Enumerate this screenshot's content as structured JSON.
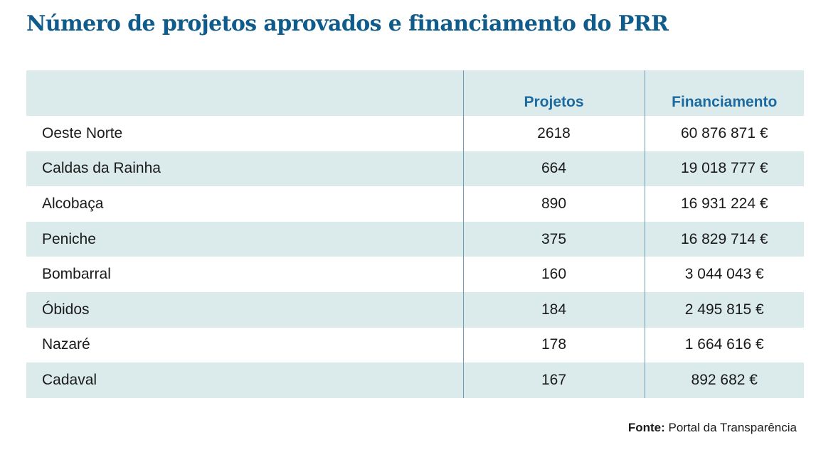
{
  "title": "Número de projetos aprovados e financiamento do PRR",
  "source": {
    "label": "Fonte:",
    "text": "Portal da Transparência"
  },
  "colors": {
    "title": "#0f5c8c",
    "header_text": "#1c6aa0",
    "stripe": "#dbeaea",
    "rule": "#6d9cb3"
  },
  "chart_data": {
    "type": "table",
    "title": "Número de projetos aprovados e financiamento do PRR",
    "columns": [
      "",
      "Projetos",
      "Financiamento"
    ],
    "rows": [
      {
        "name": "Oeste Norte",
        "projetos": "2618",
        "financiamento": "60 876 871 €"
      },
      {
        "name": "Caldas da Rainha",
        "projetos": "664",
        "financiamento": "19 018 777 €"
      },
      {
        "name": "Alcobaça",
        "projetos": "890",
        "financiamento": "16 931 224 €"
      },
      {
        "name": "Peniche",
        "projetos": "375",
        "financiamento": "16 829 714 €"
      },
      {
        "name": "Bombarral",
        "projetos": "160",
        "financiamento": "3 044 043 €"
      },
      {
        "name": "Óbidos",
        "projetos": "184",
        "financiamento": "2 495 815 €"
      },
      {
        "name": "Nazaré",
        "projetos": "178",
        "financiamento": "1 664 616 €"
      },
      {
        "name": "Cadaval",
        "projetos": "167",
        "financiamento": "892 682 €"
      }
    ]
  }
}
